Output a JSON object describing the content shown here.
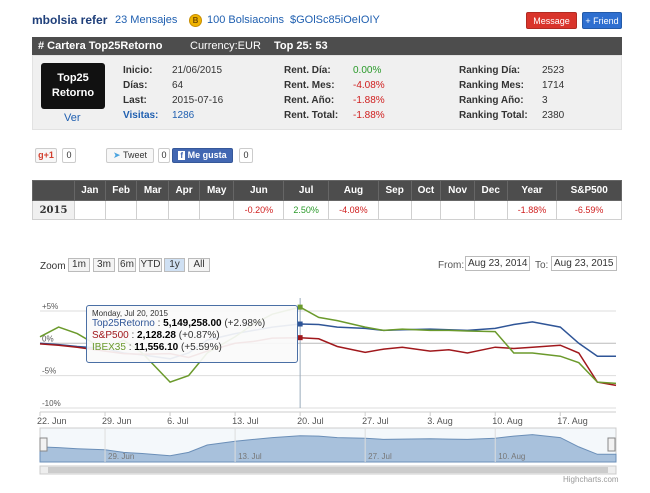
{
  "header": {
    "username": "mbolsia refer",
    "messages": "23 Mensajes",
    "coin_icon": "bolsiacoin-icon",
    "bolsiacoins": "100 Bolsiacoins",
    "handle": "$GOlSc85iOeIOIY",
    "message_button": "Message",
    "friend_button": "+ Friend"
  },
  "portfolio_bar": {
    "title": "# Cartera Top25Retorno",
    "currency": "Currency:EUR",
    "top": "Top 25: 53"
  },
  "info": {
    "logo_line1": "Top25",
    "logo_line2": "Retorno",
    "ver_link": "Ver",
    "inicio_label": "Inicio:",
    "inicio_value": "21/06/2015",
    "dias_label": "Días:",
    "dias_value": "64",
    "last_label": "Last:",
    "last_value": "2015-07-16",
    "visitas_label": "Visitas:",
    "visitas_value": "1286",
    "rent_dia_label": "Rent. Día:",
    "rent_dia_value": "0.00%",
    "rent_mes_label": "Rent. Mes:",
    "rent_mes_value": "-4.08%",
    "rent_ano_label": "Rent. Año:",
    "rent_ano_value": "-1.88%",
    "rent_total_label": "Rent. Total:",
    "rent_total_value": "-1.88%",
    "rank_dia_label": "Ranking Día:",
    "rank_dia_value": "2523",
    "rank_mes_label": "Ranking Mes:",
    "rank_mes_value": "1714",
    "rank_ano_label": "Ranking Año:",
    "rank_ano_value": "3",
    "rank_total_label": "Ranking Total:",
    "rank_total_value": "2380"
  },
  "social": {
    "gplus_label": "g+1",
    "gplus_count": "0",
    "tweet_label": "Tweet",
    "tweet_count": "0",
    "like_label": "Me gusta",
    "like_count": "0"
  },
  "monthly_table": {
    "headers": [
      "",
      "Jan",
      "Feb",
      "Mar",
      "Apr",
      "May",
      "Jun",
      "Jul",
      "Aug",
      "Sep",
      "Oct",
      "Nov",
      "Dec",
      "Year",
      "S&P500"
    ],
    "row": [
      "2015",
      "",
      "",
      "",
      "",
      "",
      "-0.20%",
      "2.50%",
      "-4.08%",
      "",
      "",
      "",
      "",
      "-1.88%",
      "-6.59%"
    ]
  },
  "chart_controls": {
    "zoom_label": "Zoom",
    "buttons": [
      "1m",
      "3m",
      "6m",
      "YTD",
      "1y",
      "All"
    ],
    "active": "1y",
    "from_label": "From:",
    "from_value": "Aug 23, 2014",
    "to_label": "To:",
    "to_value": "Aug 23, 2015",
    "credit": "Highcharts.com"
  },
  "tooltip": {
    "date": "Monday, Jul 20, 2015",
    "s1_name": "Top25Retorno",
    "s1_value": "5,149,258.00",
    "s1_change": "(+2.98%)",
    "s2_name": "S&P500",
    "s2_value": "2,128.28",
    "s2_change": "(+0.87%)",
    "s3_name": "IBEX35",
    "s3_value": "11,556.10",
    "s3_change": "(+5.59%)"
  },
  "chart_data": {
    "type": "line",
    "x": [
      "2015-06-22",
      "2015-06-24",
      "2015-06-26",
      "2015-06-29",
      "2015-07-01",
      "2015-07-03",
      "2015-07-06",
      "2015-07-08",
      "2015-07-10",
      "2015-07-13",
      "2015-07-15",
      "2015-07-17",
      "2015-07-20",
      "2015-07-22",
      "2015-07-24",
      "2015-07-27",
      "2015-07-29",
      "2015-07-31",
      "2015-08-03",
      "2015-08-05",
      "2015-08-07",
      "2015-08-10",
      "2015-08-12",
      "2015-08-14",
      "2015-08-17",
      "2015-08-19",
      "2015-08-21",
      "2015-08-23"
    ],
    "series": [
      {
        "name": "Top25Retorno",
        "color": "#2f5597",
        "values": [
          0.0,
          -0.2,
          -0.5,
          -0.8,
          -1.5,
          -1.8,
          -2.4,
          -1.5,
          0.5,
          1.5,
          2.0,
          2.5,
          2.98,
          2.9,
          2.5,
          2.3,
          2.0,
          2.1,
          2.2,
          2.1,
          2.0,
          2.3,
          2.9,
          3.3,
          2.5,
          0.0,
          -2.0,
          -2.0
        ]
      },
      {
        "name": "S&P500",
        "color": "#a0181c",
        "values": [
          -0.1,
          -0.3,
          -0.6,
          -1.2,
          -1.6,
          -1.7,
          -1.6,
          -2.2,
          -1.2,
          0.0,
          0.3,
          0.8,
          0.87,
          0.7,
          -0.5,
          -1.4,
          -0.9,
          -0.6,
          -1.2,
          -1.0,
          -1.5,
          -0.6,
          -0.8,
          -0.6,
          -0.3,
          -1.5,
          -6.0,
          -6.5
        ]
      },
      {
        "name": "IBEX35",
        "color": "#6b9a2c",
        "values": [
          1.0,
          2.5,
          1.5,
          -1.0,
          0.5,
          -1.5,
          -6.0,
          -5.0,
          -1.5,
          1.0,
          3.0,
          4.5,
          5.59,
          4.0,
          3.5,
          2.5,
          2.0,
          2.2,
          2.0,
          2.0,
          1.9,
          1.8,
          -1.5,
          -1.5,
          -2.0,
          -3.0,
          -6.0,
          -6.2
        ]
      }
    ],
    "y_ticks": [
      "+5%",
      "0%",
      "-5%",
      "-10%"
    ],
    "ylim": [
      -10,
      7
    ],
    "x_ticks": [
      "22. Jun",
      "29. Jun",
      "6. Jul",
      "13. Jul",
      "20. Jul",
      "27. Jul",
      "3. Aug",
      "10. Aug",
      "17. Aug"
    ],
    "navigator_ticks": [
      "29. Jun",
      "13. Jul",
      "27. Jul",
      "10. Aug"
    ],
    "grid": true
  }
}
